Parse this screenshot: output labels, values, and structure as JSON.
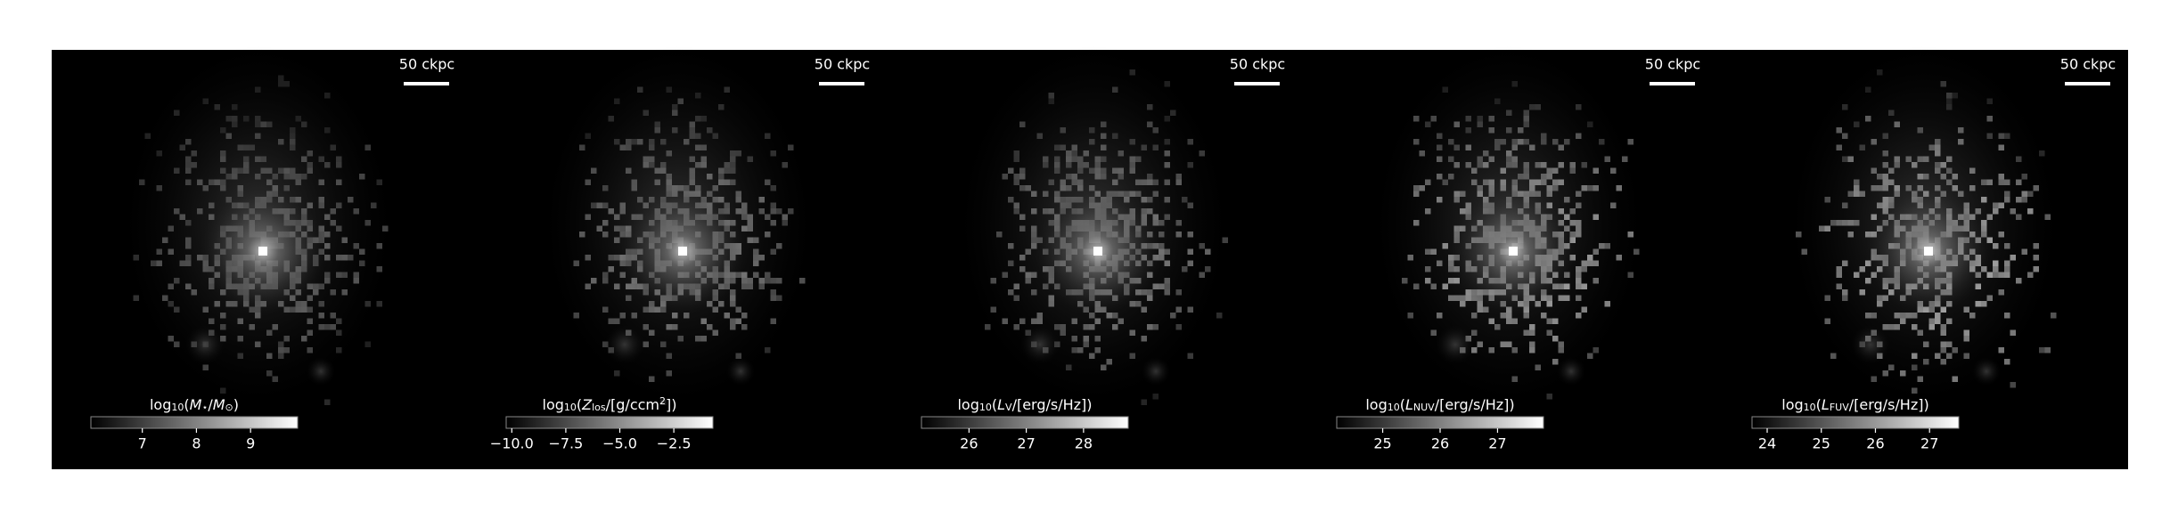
{
  "chart_data": [
    {
      "type": "image",
      "scale_bar_label": "50 ckpc",
      "colorbar_label": [
        {
          "text": "log"
        },
        {
          "text": "10",
          "sub": true
        },
        {
          "text": "("
        },
        {
          "text": "M",
          "italic": true
        },
        {
          "text": "⋆",
          "sub": true
        },
        {
          "text": "/"
        },
        {
          "text": "M",
          "italic": true
        },
        {
          "text": "⊙",
          "sub": true
        },
        {
          "text": ")"
        }
      ],
      "xlim": [
        6.05,
        9.87
      ],
      "xticks": [
        7,
        8,
        9
      ]
    },
    {
      "type": "image",
      "scale_bar_label": "50 ckpc",
      "colorbar_label": [
        {
          "text": "log"
        },
        {
          "text": "10",
          "sub": true
        },
        {
          "text": "("
        },
        {
          "text": "Z",
          "italic": true
        },
        {
          "text": "los",
          "sub": true
        },
        {
          "text": "/[g/ccm"
        },
        {
          "text": "2",
          "sup": true
        },
        {
          "text": "])"
        }
      ],
      "xlim": [
        -10.26,
        -0.69
      ],
      "xticks": [
        {
          "value": -10,
          "label": "−10.0"
        },
        {
          "value": -7.5,
          "label": "−7.5"
        },
        {
          "value": -5,
          "label": "−5.0"
        },
        {
          "value": -2.5,
          "label": "−2.5"
        }
      ]
    },
    {
      "type": "image",
      "scale_bar_label": "50 ckpc",
      "colorbar_label": [
        {
          "text": "log"
        },
        {
          "text": "10",
          "sub": true
        },
        {
          "text": "("
        },
        {
          "text": "L",
          "italic": true
        },
        {
          "text": "V",
          "sub": true
        },
        {
          "text": "/[erg/s/Hz])"
        }
      ],
      "xlim": [
        25.17,
        28.78
      ],
      "xticks": [
        26,
        27,
        28
      ]
    },
    {
      "type": "image",
      "scale_bar_label": "50 ckpc",
      "colorbar_label": [
        {
          "text": "log"
        },
        {
          "text": "10",
          "sub": true
        },
        {
          "text": "("
        },
        {
          "text": "L",
          "italic": true
        },
        {
          "text": "NUV",
          "sub": true
        },
        {
          "text": "/[erg/s/Hz])"
        }
      ],
      "xlim": [
        24.2,
        27.8
      ],
      "xticks": [
        25,
        26,
        27
      ]
    },
    {
      "type": "image",
      "scale_bar_label": "50 ckpc",
      "colorbar_label": [
        {
          "text": "log"
        },
        {
          "text": "10",
          "sub": true
        },
        {
          "text": "("
        },
        {
          "text": "L",
          "italic": true
        },
        {
          "text": "FUV",
          "sub": true
        },
        {
          "text": "/[erg/s/Hz])"
        }
      ],
      "xlim": [
        23.72,
        27.54
      ],
      "xticks": [
        24,
        25,
        26,
        27
      ]
    }
  ]
}
